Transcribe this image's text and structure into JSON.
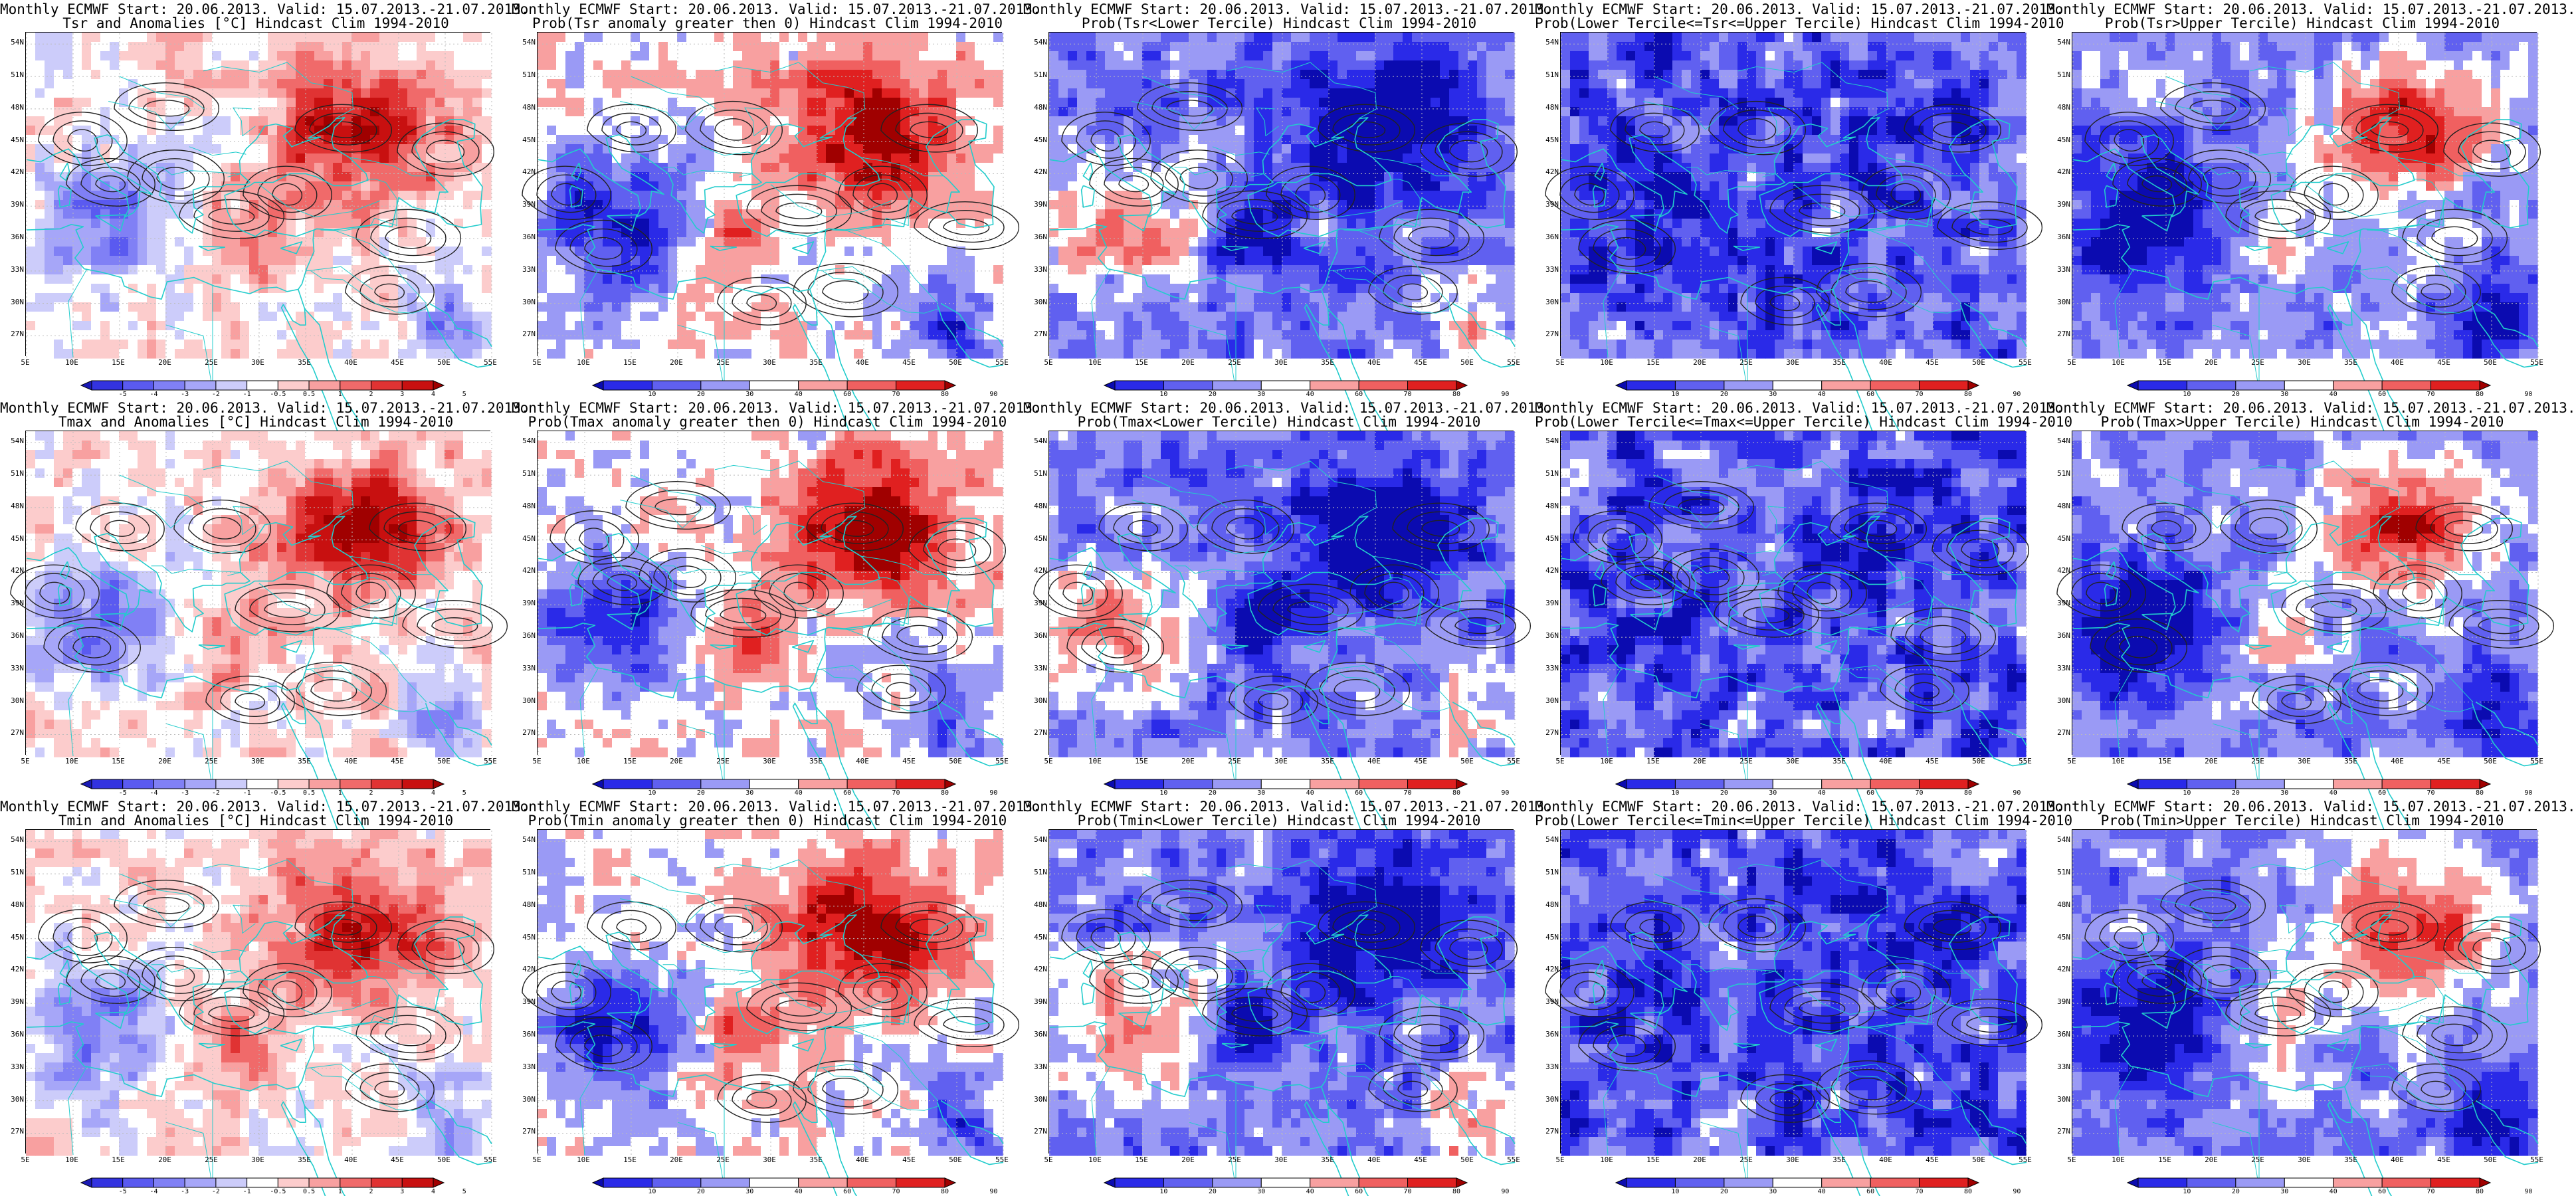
{
  "figure": {
    "rows": [
      {
        "variable": "Tsr",
        "panels": [
          {
            "title_line1": "Monthly ECMWF Start: 20.06.2013. Valid: 15.07.2013.-21.07.2013.",
            "title_line2": "Tsr and Anomalies [°C] Hindcast Clim 1994-2010",
            "field": "anomaly",
            "legend": "anomaly"
          },
          {
            "title_line1": "Monthly ECMWF Start: 20.06.2013. Valid: 15.07.2013.-21.07.2013.",
            "title_line2": "Prob(Tsr anomaly greater then 0) Hindcast Clim 1994-2010",
            "field": "prob_gt0",
            "legend": "probability"
          },
          {
            "title_line1": "Monthly ECMWF Start: 20.06.2013. Valid: 15.07.2013.-21.07.2013.",
            "title_line2": "Prob(Tsr<Lower Tercile) Hindcast Clim 1994-2010",
            "field": "prob_lower",
            "legend": "probability"
          },
          {
            "title_line1": "Monthly ECMWF Start: 20.06.2013. Valid: 15.07.2013.-21.07.2013.",
            "title_line2": "Prob(Lower Tercile<=Tsr<=Upper Tercile) Hindcast Clim 1994-2010",
            "field": "prob_middle",
            "legend": "probability"
          },
          {
            "title_line1": "Monthly ECMWF Start: 20.06.2013. Valid: 15.07.2013.-21.07.2013.",
            "title_line2": "Prob(Tsr>Upper Tercile) Hindcast Clim 1994-2010",
            "field": "prob_upper",
            "legend": "probability"
          }
        ]
      },
      {
        "variable": "Tmax",
        "panels": [
          {
            "title_line1": "Monthly ECMWF Start: 20.06.2013. Valid: 15.07.2013.-21.07.2013.",
            "title_line2": "Tmax and Anomalies [°C] Hindcast Clim 1994-2010",
            "field": "anomaly",
            "legend": "anomaly"
          },
          {
            "title_line1": "Monthly ECMWF Start: 20.06.2013. Valid: 15.07.2013.-21.07.2013.",
            "title_line2": "Prob(Tmax anomaly greater then 0) Hindcast Clim 1994-2010",
            "field": "prob_gt0",
            "legend": "probability"
          },
          {
            "title_line1": "Monthly ECMWF Start: 20.06.2013. Valid: 15.07.2013.-21.07.2013.",
            "title_line2": "Prob(Tmax<Lower Tercile) Hindcast Clim 1994-2010",
            "field": "prob_lower",
            "legend": "probability"
          },
          {
            "title_line1": "Monthly ECMWF Start: 20.06.2013. Valid: 15.07.2013.-21.07.2013.",
            "title_line2": "Prob(Lower Tercile<=Tmax<=Upper Tercile) Hindcast Clim 1994-2010",
            "field": "prob_middle",
            "legend": "probability"
          },
          {
            "title_line1": "Monthly ECMWF Start: 20.06.2013. Valid: 15.07.2013.-21.07.2013.",
            "title_line2": "Prob(Tmax>Upper Tercile) Hindcast Clim 1994-2010",
            "field": "prob_upper",
            "legend": "probability"
          }
        ]
      },
      {
        "variable": "Tmin",
        "panels": [
          {
            "title_line1": "Monthly ECMWF Start: 20.06.2013. Valid: 15.07.2013.-21.07.2013.",
            "title_line2": "Tmin and Anomalies [°C] Hindcast Clim 1994-2010",
            "field": "anomaly",
            "legend": "anomaly"
          },
          {
            "title_line1": "Monthly ECMWF Start: 20.06.2013. Valid: 15.07.2013.-21.07.2013.",
            "title_line2": "Prob(Tmin anomaly greater then 0) Hindcast Clim 1994-2010",
            "field": "prob_gt0",
            "legend": "probability"
          },
          {
            "title_line1": "Monthly ECMWF Start: 20.06.2013. Valid: 15.07.2013.-21.07.2013.",
            "title_line2": "Prob(Tmin<Lower Tercile) Hindcast Clim 1994-2010",
            "field": "prob_lower",
            "legend": "probability"
          },
          {
            "title_line1": "Monthly ECMWF Start: 20.06.2013. Valid: 15.07.2013.-21.07.2013.",
            "title_line2": "Prob(Lower Tercile<=Tmin<=Upper Tercile) Hindcast Clim 1994-2010",
            "field": "prob_middle",
            "legend": "probability"
          },
          {
            "title_line1": "Monthly ECMWF Start: 20.06.2013. Valid: 15.07.2013.-21.07.2013.",
            "title_line2": "Prob(Tmin>Upper Tercile) Hindcast Clim 1994-2010",
            "field": "prob_upper",
            "legend": "probability"
          }
        ]
      }
    ]
  },
  "map_axes": {
    "lat_labels": [
      "54N",
      "51N",
      "48N",
      "45N",
      "42N",
      "39N",
      "36N",
      "33N",
      "30N",
      "27N"
    ],
    "lat_values": [
      54,
      51,
      48,
      45,
      42,
      39,
      36,
      33,
      30,
      27
    ],
    "lat_range": [
      25,
      55
    ],
    "lon_labels": [
      "5E",
      "10E",
      "15E",
      "20E",
      "25E",
      "30E",
      "35E",
      "40E",
      "45E",
      "50E",
      "55E"
    ],
    "lon_values": [
      5,
      10,
      15,
      20,
      25,
      30,
      35,
      40,
      45,
      50,
      55
    ],
    "lon_range": [
      5,
      55
    ]
  },
  "legends": {
    "anomaly": {
      "labels": [
        "-5",
        "-4",
        "-3",
        "-2",
        "-1",
        "-0.5",
        "0.5",
        "1",
        "2",
        "3",
        "4",
        "5"
      ],
      "colors": [
        "#1a1ab5",
        "#3333e0",
        "#5a5af0",
        "#8080f5",
        "#a6a6f8",
        "#ccccfa",
        "#ffffff",
        "#fccccc",
        "#f8a0a0",
        "#f06a6a",
        "#e03333",
        "#c81010",
        "#a00000"
      ]
    },
    "probability": {
      "labels": [
        "10",
        "20",
        "30",
        "40",
        "60",
        "70",
        "80",
        "90"
      ],
      "colors": [
        "#0b0bb0",
        "#2a2ae8",
        "#6060f0",
        "#9a9af5",
        "#ffffff",
        "#f8a0a0",
        "#f06060",
        "#e02020",
        "#a00000"
      ]
    }
  },
  "style_colors": {
    "coastline": "#22cccc",
    "contour": "#222222",
    "gridline": "#bbbbbb",
    "background": "#ffffff"
  }
}
